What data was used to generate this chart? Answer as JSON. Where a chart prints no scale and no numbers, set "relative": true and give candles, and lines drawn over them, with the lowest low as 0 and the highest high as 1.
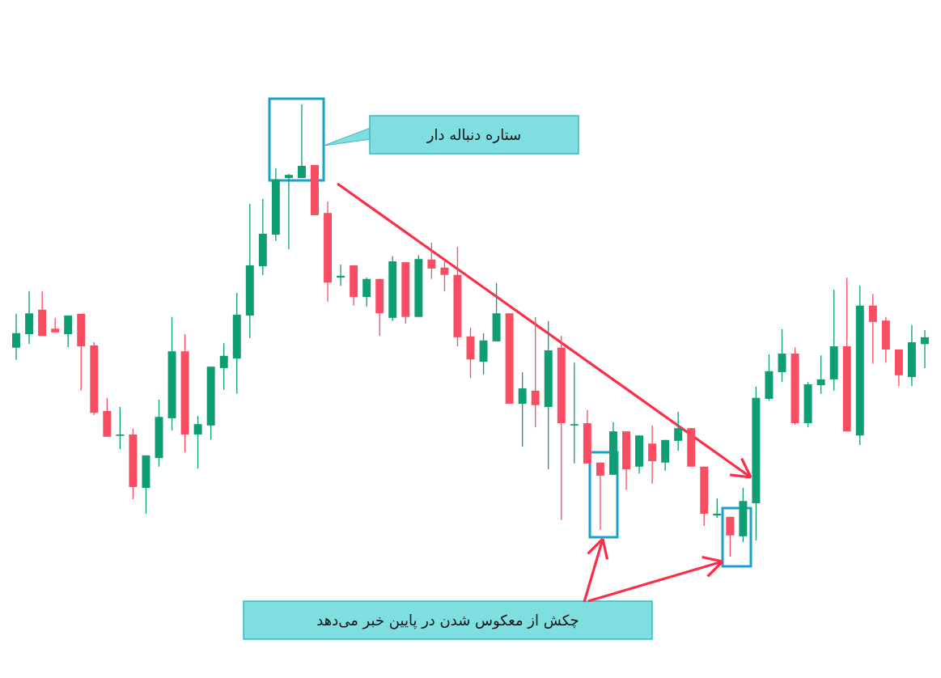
{
  "chart_data": {
    "type": "candlestick",
    "relative": true,
    "annotations": [
      "ستاره دنباله دار",
      "چکش از معکوس شدن در پایین خبر می‌دهد"
    ],
    "categories": [
      null,
      null,
      null,
      null,
      null,
      null,
      null,
      null,
      null,
      null,
      null,
      null,
      null,
      null,
      null,
      null,
      null,
      null,
      null,
      null,
      null,
      null,
      null,
      null,
      null,
      null,
      null,
      null,
      null,
      null,
      null,
      null,
      null,
      null,
      null,
      null,
      null,
      null,
      null,
      null,
      null,
      null,
      null,
      null,
      null,
      null,
      null,
      null,
      null,
      null,
      null,
      null,
      null,
      null,
      null,
      null,
      null,
      null,
      null,
      null,
      null,
      null,
      null,
      null,
      null,
      null,
      null,
      null,
      null,
      null,
      null
    ],
    "ohlc": [
      [
        0.462,
        0.537,
        0.435,
        0.494
      ],
      [
        0.492,
        0.587,
        0.47,
        0.538
      ],
      [
        0.546,
        0.587,
        0.488,
        0.488
      ],
      [
        0.504,
        0.528,
        0.496,
        0.496
      ],
      [
        0.492,
        0.533,
        0.463,
        0.533
      ],
      [
        0.537,
        0.537,
        0.367,
        0.465
      ],
      [
        0.467,
        0.474,
        0.313,
        0.318
      ],
      [
        0.322,
        0.351,
        0.265,
        0.265
      ],
      [
        0.267,
        0.331,
        0.238,
        0.27
      ],
      [
        0.27,
        0.283,
        0.127,
        0.154
      ],
      [
        0.152,
        0.224,
        0.095,
        0.224
      ],
      [
        0.218,
        0.347,
        0.199,
        0.309
      ],
      [
        0.306,
        0.53,
        0.279,
        0.454
      ],
      [
        0.454,
        0.492,
        0.231,
        0.27
      ],
      [
        0.27,
        0.311,
        0.195,
        0.293
      ],
      [
        0.29,
        0.42,
        0.259,
        0.42
      ],
      [
        0.417,
        0.472,
        0.369,
        0.444
      ],
      [
        0.438,
        0.583,
        0.36,
        0.535
      ],
      [
        0.533,
        0.78,
        0.483,
        0.644
      ],
      [
        0.642,
        0.791,
        0.623,
        0.714
      ],
      [
        0.712,
        0.859,
        0.698,
        0.834
      ],
      [
        0.837,
        0.846,
        0.68,
        0.844
      ],
      [
        0.837,
        1,
        0.837,
        0.864
      ],
      [
        0.866,
        0.866,
        0.755,
        0.755
      ],
      [
        0.76,
        0.785,
        0.564,
        0.606
      ],
      [
        0.617,
        0.646,
        0.599,
        0.621
      ],
      [
        0.644,
        0.644,
        0.555,
        0.574
      ],
      [
        0.574,
        0.617,
        0.553,
        0.614
      ],
      [
        0.614,
        0.614,
        0.488,
        0.538
      ],
      [
        0.528,
        0.664,
        0.521,
        0.653
      ],
      [
        0.651,
        0.651,
        0.515,
        0.53
      ],
      [
        0.53,
        0.667,
        0.53,
        0.658
      ],
      [
        0.657,
        0.694,
        0.614,
        0.637
      ],
      [
        0.639,
        0.655,
        0.587,
        0.623
      ],
      [
        0.623,
        0.685,
        0.465,
        0.485
      ],
      [
        0.487,
        0.506,
        0.395,
        0.436
      ],
      [
        0.431,
        0.494,
        0.403,
        0.478
      ],
      [
        0.476,
        0.605,
        0.476,
        0.538
      ],
      [
        0.538,
        0.538,
        0.338,
        0.338
      ],
      [
        0.338,
        0.408,
        0.243,
        0.372
      ],
      [
        0.367,
        0.53,
        0.286,
        0.335
      ],
      [
        0.331,
        0.521,
        0.193,
        0.456
      ],
      [
        0.462,
        0.488,
        0.081,
        0.295
      ],
      [
        0.29,
        0.429,
        0.206,
        0.293
      ],
      [
        0.295,
        0.324,
        0.206,
        0.206
      ],
      [
        0.208,
        0.208,
        0.059,
        0.179
      ],
      [
        0.181,
        0.297,
        0.181,
        0.277
      ],
      [
        0.277,
        0.277,
        0.148,
        0.193
      ],
      [
        0.199,
        0.268,
        0.184,
        0.268
      ],
      [
        0.25,
        0.29,
        0.161,
        0.211
      ],
      [
        0.208,
        0.258,
        0.19,
        0.258
      ],
      [
        0.256,
        0.32,
        0.234,
        0.284
      ],
      [
        0.284,
        0.284,
        0.199,
        0.199
      ],
      [
        0.199,
        0.199,
        0.068,
        0.095
      ],
      [
        0.091,
        0.129,
        0.086,
        0.095
      ],
      [
        0.088,
        0.088,
        0,
        0.047
      ],
      [
        0.045,
        0.152,
        0.032,
        0.123
      ],
      [
        0.118,
        0.376,
        0.036,
        0.351
      ],
      [
        0.349,
        0.447,
        0.345,
        0.41
      ],
      [
        0.408,
        0.503,
        0.386,
        0.449
      ],
      [
        0.449,
        0.463,
        0.292,
        0.295
      ],
      [
        0.295,
        0.386,
        0.286,
        0.381
      ],
      [
        0.379,
        0.445,
        0.36,
        0.392
      ],
      [
        0.392,
        0.59,
        0.367,
        0.465
      ],
      [
        0.465,
        0.617,
        0.277,
        0.277
      ],
      [
        0.268,
        0.599,
        0.247,
        0.555
      ],
      [
        0.555,
        0.581,
        0.426,
        0.519
      ],
      [
        0.522,
        0.53,
        0.429,
        0.458
      ],
      [
        0.458,
        0.458,
        0.377,
        0.401
      ],
      [
        0.397,
        0.512,
        0.377,
        0.474
      ],
      [
        0.47,
        0.501,
        0.417,
        0.485
      ]
    ],
    "colors": [
      "#0f9d74",
      "#0f9d74",
      "#f94d63",
      "#f94d63",
      "#0f9d74",
      "#f94d63",
      "#f94d63",
      "#f94d63",
      "#0f9d74",
      "#f94d63",
      "#0f9d74",
      "#0f9d74",
      "#0f9d74",
      "#f94d63",
      "#0f9d74",
      "#0f9d74",
      "#0f9d74",
      "#0f9d74",
      "#0f9d74",
      "#0f9d74",
      "#0f9d74",
      "#0f9d74",
      "#0f9d74",
      "#f94d63",
      "#f94d63",
      "#0f9d74",
      "#f94d63",
      "#0f9d74",
      "#f94d63",
      "#0f9d74",
      "#f94d63",
      "#0f9d74",
      "#f94d63",
      "#f94d63",
      "#f94d63",
      "#f94d63",
      "#0f9d74",
      "#0f9d74",
      "#f94d63",
      "#0f9d74",
      "#f94d63",
      "#0f9d74",
      "#f94d63",
      "#0f9d74",
      "#f94d63",
      "#f94d63",
      "#0f9d74",
      "#f94d63",
      "#0f9d74",
      "#f94d63",
      "#0f9d74",
      "#0f9d74",
      "#f94d63",
      "#f94d63",
      "#0f9d74",
      "#f94d63",
      "#0f9d74",
      "#0f9d74",
      "#0f9d74",
      "#0f9d74",
      "#f94d63",
      "#0f9d74",
      "#0f9d74",
      "#0f9d74",
      "#f94d63",
      "#0f9d74",
      "#f94d63",
      "#f94d63",
      "#f94d63",
      "#0f9d74",
      "#0f9d74"
    ]
  }
}
